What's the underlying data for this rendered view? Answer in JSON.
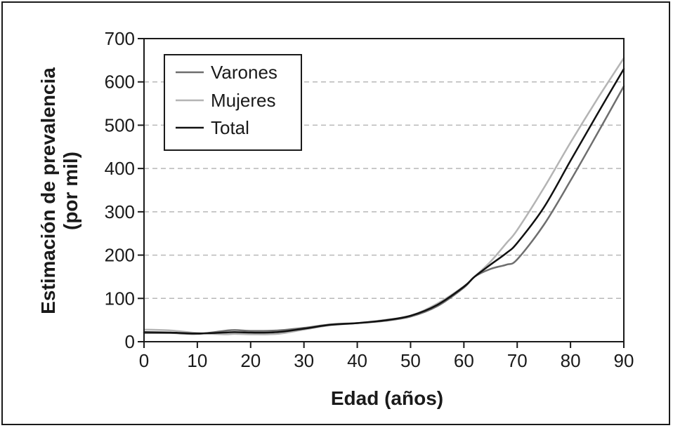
{
  "chart_data": {
    "type": "line",
    "title": "",
    "xlabel": "Edad (años)",
    "ylabel_line1": "Estimación de prevalencia",
    "ylabel_line2": "(por mil)",
    "xlim": [
      0,
      90
    ],
    "ylim": [
      0,
      700
    ],
    "x_ticks": [
      0,
      10,
      20,
      30,
      40,
      50,
      60,
      70,
      80,
      90
    ],
    "y_ticks": [
      0,
      100,
      200,
      300,
      400,
      500,
      600,
      700
    ],
    "grid": "horizontal-dashed",
    "legend_position": "top-left",
    "x": [
      0,
      5,
      10,
      15,
      17,
      20,
      25,
      30,
      35,
      40,
      45,
      50,
      55,
      60,
      62,
      65,
      68,
      70,
      75,
      80,
      85,
      90
    ],
    "series": [
      {
        "name": "Varones",
        "color": "#6e6e6e",
        "values": [
          20,
          20,
          18,
          25,
          27,
          25,
          26,
          32,
          40,
          43,
          48,
          58,
          82,
          125,
          150,
          168,
          178,
          190,
          270,
          372,
          480,
          590
        ]
      },
      {
        "name": "Mujeres",
        "color": "#b4b4b4",
        "values": [
          28,
          26,
          20,
          17,
          18,
          17,
          18,
          28,
          38,
          43,
          50,
          60,
          88,
          128,
          150,
          185,
          228,
          258,
          355,
          460,
          560,
          655
        ]
      },
      {
        "name": "Total",
        "color": "#111111",
        "values": [
          22,
          21,
          19,
          21,
          22,
          21,
          22,
          30,
          39,
          43,
          49,
          60,
          85,
          127,
          150,
          178,
          205,
          228,
          310,
          418,
          525,
          630
        ]
      }
    ]
  }
}
